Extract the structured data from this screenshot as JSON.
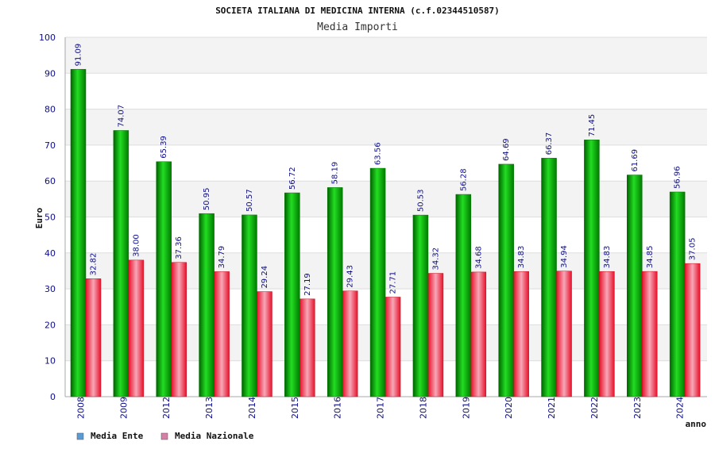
{
  "chart_data": {
    "type": "bar",
    "title": "SOCIETA ITALIANA DI MEDICINA INTERNA (c.f.02344510587)",
    "subtitle": "Media Importi",
    "xlabel": "anno",
    "ylabel": "Euro",
    "ylim": [
      0,
      100
    ],
    "yticks": [
      0,
      10,
      20,
      30,
      40,
      50,
      60,
      70,
      80,
      90,
      100
    ],
    "categories": [
      "2008",
      "2009",
      "2012",
      "2013",
      "2014",
      "2015",
      "2016",
      "2017",
      "2018",
      "2019",
      "2020",
      "2021",
      "2022",
      "2023",
      "2024"
    ],
    "series": [
      {
        "name": "Media Ente",
        "color": "#00a000",
        "legend_color": "#5b9bd5",
        "values": [
          91.09,
          74.07,
          65.39,
          50.95,
          50.57,
          56.72,
          58.19,
          63.56,
          50.53,
          56.28,
          64.69,
          66.37,
          71.45,
          61.69,
          56.96
        ],
        "labels": [
          "91.09",
          "74.07",
          "65.39",
          "50.95",
          "50.57",
          "56.72",
          "58.19",
          "63.56",
          "50.53",
          "56.28",
          "64.69",
          "66.37",
          "71.45",
          "61.69",
          "56.96"
        ]
      },
      {
        "name": "Media Nazionale",
        "color": "#e0202a",
        "legend_color": "#d77fa8",
        "values": [
          32.82,
          38.0,
          37.36,
          34.79,
          29.24,
          27.19,
          29.43,
          27.71,
          34.32,
          34.68,
          34.83,
          34.94,
          34.83,
          34.85,
          37.05
        ],
        "labels": [
          "32.82",
          "38.00",
          "37.36",
          "34.79",
          "29.24",
          "27.19",
          "29.43",
          "27.71",
          "34.32",
          "34.68",
          "34.83",
          "34.94",
          "34.83",
          "34.85",
          "37.05"
        ]
      }
    ],
    "grid": true,
    "legend_position": "bottom-left"
  }
}
